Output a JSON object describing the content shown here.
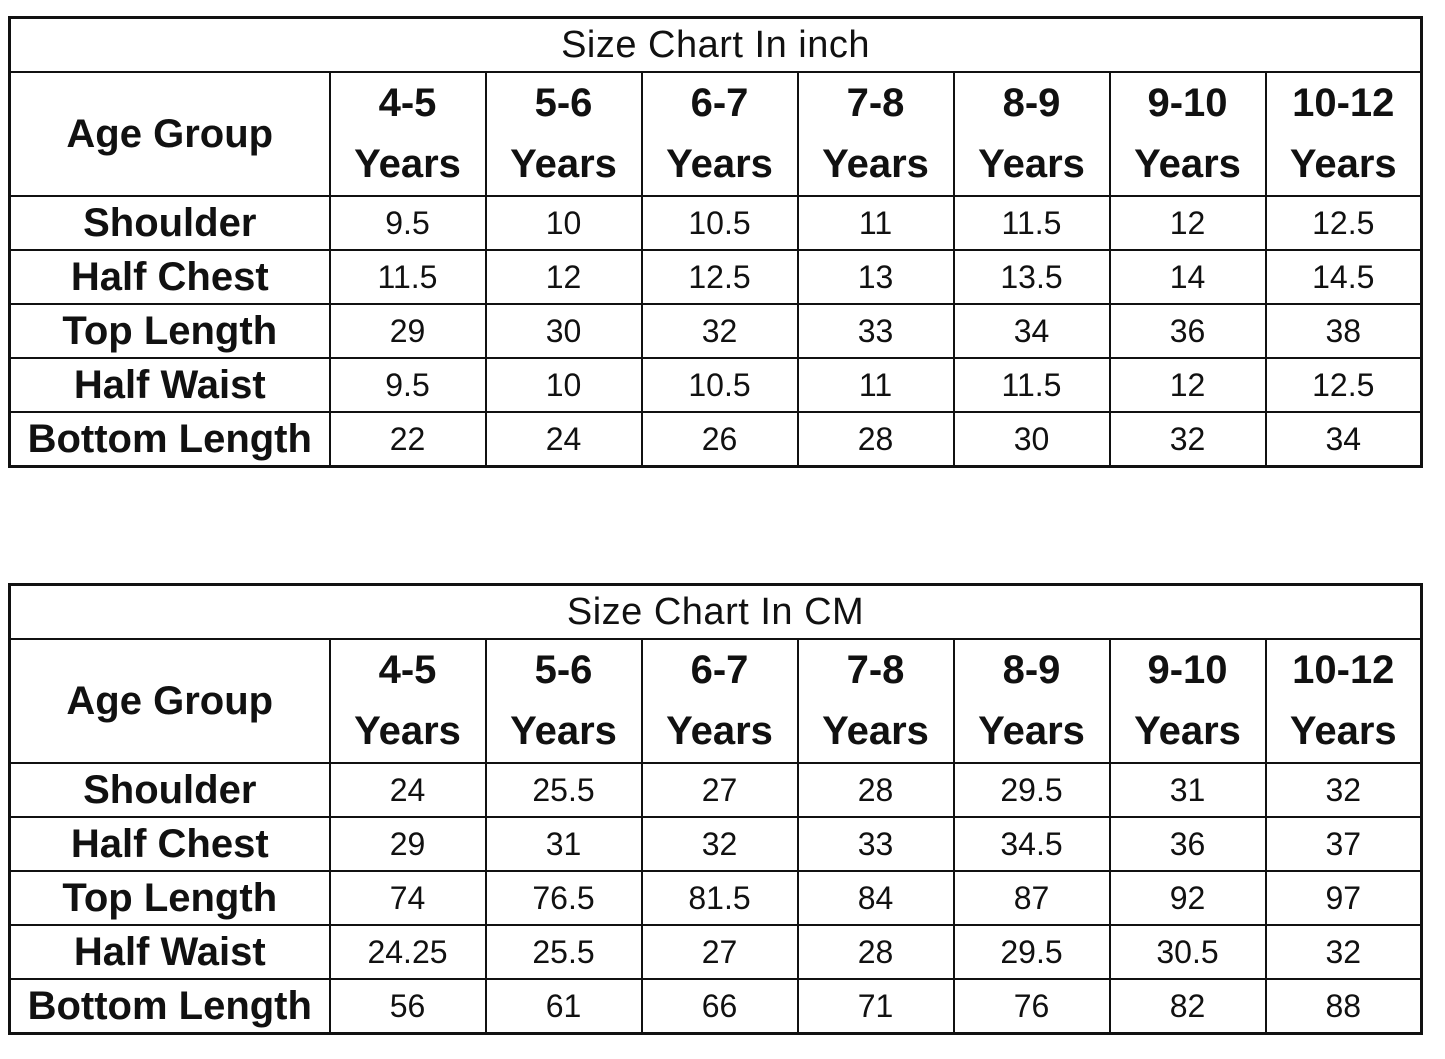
{
  "chart_data": [
    {
      "type": "table",
      "title": "Size Chart In inch",
      "header_label": "Age Group",
      "columns": [
        {
          "range": "4-5",
          "unit": "Years"
        },
        {
          "range": "5-6",
          "unit": "Years"
        },
        {
          "range": "6-7",
          "unit": "Years"
        },
        {
          "range": "7-8",
          "unit": "Years"
        },
        {
          "range": "8-9",
          "unit": "Years"
        },
        {
          "range": "9-10",
          "unit": "Years"
        },
        {
          "range": "10-12",
          "unit": "Years"
        }
      ],
      "rows": [
        {
          "label": "Shoulder",
          "values": [
            "9.5",
            "10",
            "10.5",
            "11",
            "11.5",
            "12",
            "12.5"
          ]
        },
        {
          "label": "Half Chest",
          "values": [
            "11.5",
            "12",
            "12.5",
            "13",
            "13.5",
            "14",
            "14.5"
          ]
        },
        {
          "label": "Top Length",
          "values": [
            "29",
            "30",
            "32",
            "33",
            "34",
            "36",
            "38"
          ]
        },
        {
          "label": "Half Waist",
          "values": [
            "9.5",
            "10",
            "10.5",
            "11",
            "11.5",
            "12",
            "12.5"
          ]
        },
        {
          "label": "Bottom Length",
          "values": [
            "22",
            "24",
            "26",
            "28",
            "30",
            "32",
            "34"
          ]
        }
      ]
    },
    {
      "type": "table",
      "title": "Size Chart In CM",
      "header_label": "Age Group",
      "columns": [
        {
          "range": "4-5",
          "unit": "Years"
        },
        {
          "range": "5-6",
          "unit": "Years"
        },
        {
          "range": "6-7",
          "unit": "Years"
        },
        {
          "range": "7-8",
          "unit": "Years"
        },
        {
          "range": "8-9",
          "unit": "Years"
        },
        {
          "range": "9-10",
          "unit": "Years"
        },
        {
          "range": "10-12",
          "unit": "Years"
        }
      ],
      "rows": [
        {
          "label": "Shoulder",
          "values": [
            "24",
            "25.5",
            "27",
            "28",
            "29.5",
            "31",
            "32"
          ]
        },
        {
          "label": "Half Chest",
          "values": [
            "29",
            "31",
            "32",
            "33",
            "34.5",
            "36",
            "37"
          ]
        },
        {
          "label": "Top Length",
          "values": [
            "74",
            "76.5",
            "81.5",
            "84",
            "87",
            "92",
            "97"
          ]
        },
        {
          "label": "Half Waist",
          "values": [
            "24.25",
            "25.5",
            "27",
            "28",
            "29.5",
            "30.5",
            "32"
          ]
        },
        {
          "label": "Bottom Length",
          "values": [
            "56",
            "61",
            "66",
            "71",
            "76",
            "82",
            "88"
          ]
        }
      ]
    }
  ]
}
